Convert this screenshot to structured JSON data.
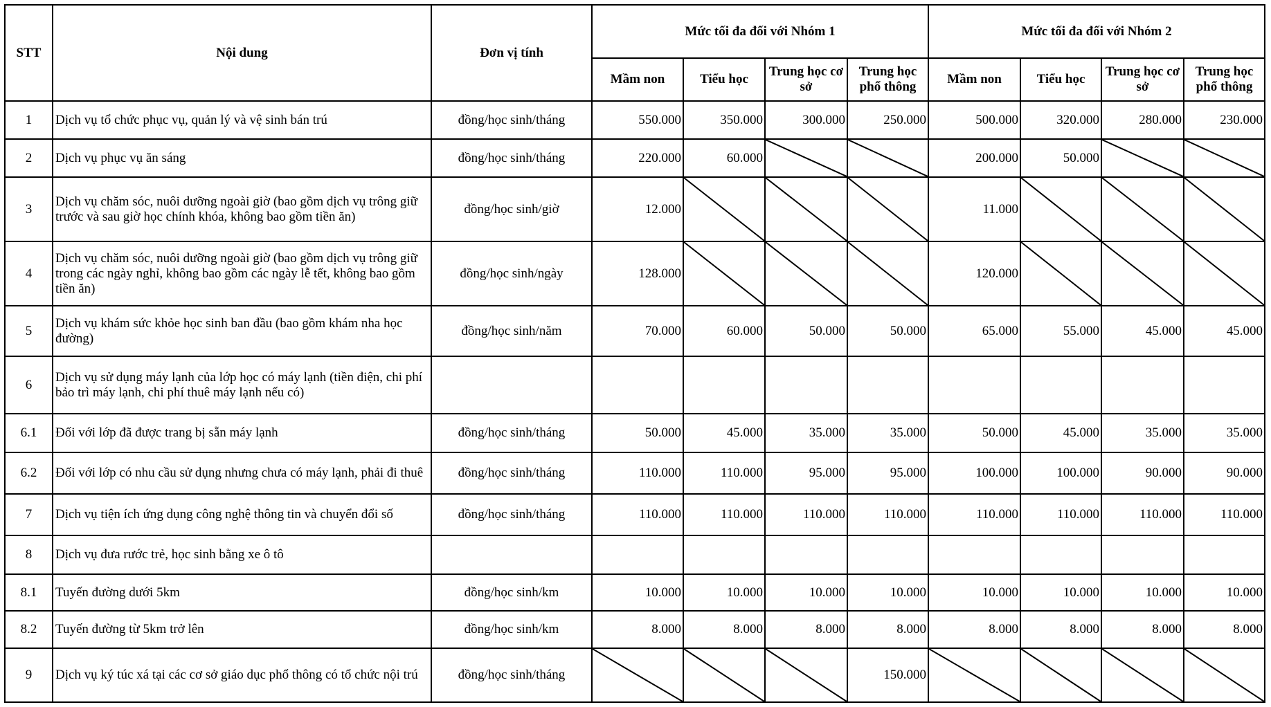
{
  "header": {
    "stt": "STT",
    "content": "Nội dung",
    "unit": "Đơn vị tính",
    "group1": "Mức tối đa đối với Nhóm 1",
    "group2": "Mức tối đa đối với Nhóm 2",
    "levels": [
      "Mầm non",
      "Tiểu học",
      "Trung học cơ sở",
      "Trung học phổ thông"
    ]
  },
  "rows": [
    {
      "stt": "1",
      "content": "Dịch vụ tổ chức phục vụ, quản lý và vệ sinh bán trú",
      "unit": "đồng/học sinh/tháng",
      "values": [
        "550.000",
        "350.000",
        "300.000",
        "250.000",
        "500.000",
        "320.000",
        "280.000",
        "230.000"
      ]
    },
    {
      "stt": "2",
      "content": "Dịch vụ phục vụ ăn sáng",
      "unit": "đồng/học sinh/tháng",
      "values": [
        "220.000",
        "60.000",
        null,
        null,
        "200.000",
        "50.000",
        null,
        null
      ]
    },
    {
      "stt": "3",
      "content": "Dịch vụ chăm sóc, nuôi dưỡng ngoài giờ (bao gồm dịch vụ trông giữ trước và sau giờ học chính khóa, không bao gồm tiền ăn)",
      "unit": "đồng/học sinh/giờ",
      "values": [
        "12.000",
        null,
        null,
        null,
        "11.000",
        null,
        null,
        null
      ]
    },
    {
      "stt": "4",
      "content": "Dịch vụ chăm sóc, nuôi dưỡng ngoài giờ (bao gồm dịch vụ trông giữ trong các ngày nghỉ, không bao gồm các ngày lễ tết, không bao gồm tiền ăn)",
      "unit": "đồng/học sinh/ngày",
      "values": [
        "128.000",
        null,
        null,
        null,
        "120.000",
        null,
        null,
        null
      ]
    },
    {
      "stt": "5",
      "content": "Dịch vụ khám sức khỏe học sinh ban đầu (bao gồm khám nha học đường)",
      "unit": "đồng/học sinh/năm",
      "values": [
        "70.000",
        "60.000",
        "50.000",
        "50.000",
        "65.000",
        "55.000",
        "45.000",
        "45.000"
      ]
    },
    {
      "stt": "6",
      "content": "Dịch vụ sử dụng máy lạnh của lớp học có máy lạnh (tiền điện, chi phí bảo trì máy lạnh, chi phí thuê máy lạnh nếu có)",
      "unit": "",
      "values": [
        "",
        "",
        "",
        "",
        "",
        "",
        "",
        ""
      ]
    },
    {
      "stt": "6.1",
      "content": "Đối với lớp đã được trang bị sẵn máy lạnh",
      "unit": "đồng/học sinh/tháng",
      "values": [
        "50.000",
        "45.000",
        "35.000",
        "35.000",
        "50.000",
        "45.000",
        "35.000",
        "35.000"
      ]
    },
    {
      "stt": "6.2",
      "content": "Đối với lớp có nhu cầu sử dụng nhưng chưa có máy lạnh, phải đi thuê",
      "unit": "đồng/học sinh/tháng",
      "values": [
        "110.000",
        "110.000",
        "95.000",
        "95.000",
        "100.000",
        "100.000",
        "90.000",
        "90.000"
      ]
    },
    {
      "stt": "7",
      "content": "Dịch vụ tiện ích ứng dụng công nghệ thông tin và chuyển đổi số",
      "unit": "đồng/học sinh/tháng",
      "values": [
        "110.000",
        "110.000",
        "110.000",
        "110.000",
        "110.000",
        "110.000",
        "110.000",
        "110.000"
      ]
    },
    {
      "stt": "8",
      "content": "Dịch vụ đưa rước trẻ, học sinh bằng xe ô tô",
      "unit": "",
      "values": [
        "",
        "",
        "",
        "",
        "",
        "",
        "",
        ""
      ]
    },
    {
      "stt": "8.1",
      "content": "Tuyến đường dưới 5km",
      "unit": "đồng/học sinh/km",
      "values": [
        "10.000",
        "10.000",
        "10.000",
        "10.000",
        "10.000",
        "10.000",
        "10.000",
        "10.000"
      ]
    },
    {
      "stt": "8.2",
      "content": "Tuyến đường từ 5km trở lên",
      "unit": "đồng/học sinh/km",
      "values": [
        "8.000",
        "8.000",
        "8.000",
        "8.000",
        "8.000",
        "8.000",
        "8.000",
        "8.000"
      ]
    },
    {
      "stt": "9",
      "content": "Dịch vụ ký túc xá tại các cơ sở giáo dục phổ thông có tổ chức nội trú",
      "unit": "đồng/học sinh/tháng",
      "values": [
        null,
        null,
        null,
        "150.000",
        null,
        null,
        null,
        null
      ]
    }
  ]
}
